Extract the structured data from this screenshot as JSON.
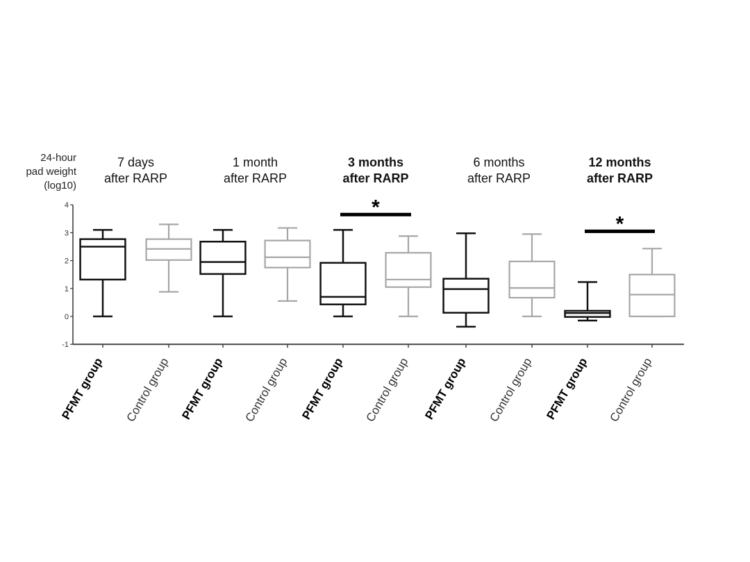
{
  "chart_data": {
    "type": "box",
    "ylabel_lines": [
      "24-hour",
      "pad weight",
      "(log10)"
    ],
    "ylim": [
      -1,
      4
    ],
    "yticks": [
      "4",
      "3",
      "2",
      "1",
      "0",
      "-1"
    ],
    "periods": [
      {
        "label_lines": [
          "7 days",
          "after RARP"
        ],
        "bold": false
      },
      {
        "label_lines": [
          "1 month",
          "after RARP"
        ],
        "bold": false
      },
      {
        "label_lines": [
          "3 months",
          "after RARP"
        ],
        "bold": true
      },
      {
        "label_lines": [
          "6 months",
          "after RARP"
        ],
        "bold": false
      },
      {
        "label_lines": [
          "12 months",
          "after RARP"
        ],
        "bold": true
      }
    ],
    "groups": [
      {
        "label": "PFMT group",
        "bold": true,
        "color": "#111111"
      },
      {
        "label": "Control group",
        "bold": false,
        "color": "#a6a6a6"
      }
    ],
    "boxes": [
      {
        "period": 0,
        "group": 0,
        "min": 0.0,
        "q1": 1.32,
        "median": 2.5,
        "q3": 2.77,
        "max": 3.1
      },
      {
        "period": 0,
        "group": 1,
        "min": 0.88,
        "q1": 2.02,
        "median": 2.42,
        "q3": 2.77,
        "max": 3.3
      },
      {
        "period": 1,
        "group": 0,
        "min": 0.0,
        "q1": 1.52,
        "median": 1.95,
        "q3": 2.68,
        "max": 3.1
      },
      {
        "period": 1,
        "group": 1,
        "min": 0.55,
        "q1": 1.75,
        "median": 2.12,
        "q3": 2.72,
        "max": 3.17
      },
      {
        "period": 2,
        "group": 0,
        "min": 0.0,
        "q1": 0.43,
        "median": 0.7,
        "q3": 1.92,
        "max": 3.1
      },
      {
        "period": 2,
        "group": 1,
        "min": 0.0,
        "q1": 1.05,
        "median": 1.32,
        "q3": 2.28,
        "max": 2.88
      },
      {
        "period": 3,
        "group": 0,
        "min": -0.37,
        "q1": 0.13,
        "median": 0.98,
        "q3": 1.35,
        "max": 2.98
      },
      {
        "period": 3,
        "group": 1,
        "min": 0.0,
        "q1": 0.67,
        "median": 1.02,
        "q3": 1.97,
        "max": 2.95
      },
      {
        "period": 4,
        "group": 0,
        "min": -0.15,
        "q1": -0.02,
        "median": 0.12,
        "q3": 0.2,
        "max": 1.23
      },
      {
        "period": 4,
        "group": 1,
        "min": 0.0,
        "q1": 0.0,
        "median": 0.78,
        "q3": 1.5,
        "max": 2.43
      }
    ],
    "significance": [
      {
        "period": 2,
        "y": 3.65,
        "symbol": "*"
      },
      {
        "period": 4,
        "y": 3.05,
        "symbol": "*"
      }
    ]
  }
}
